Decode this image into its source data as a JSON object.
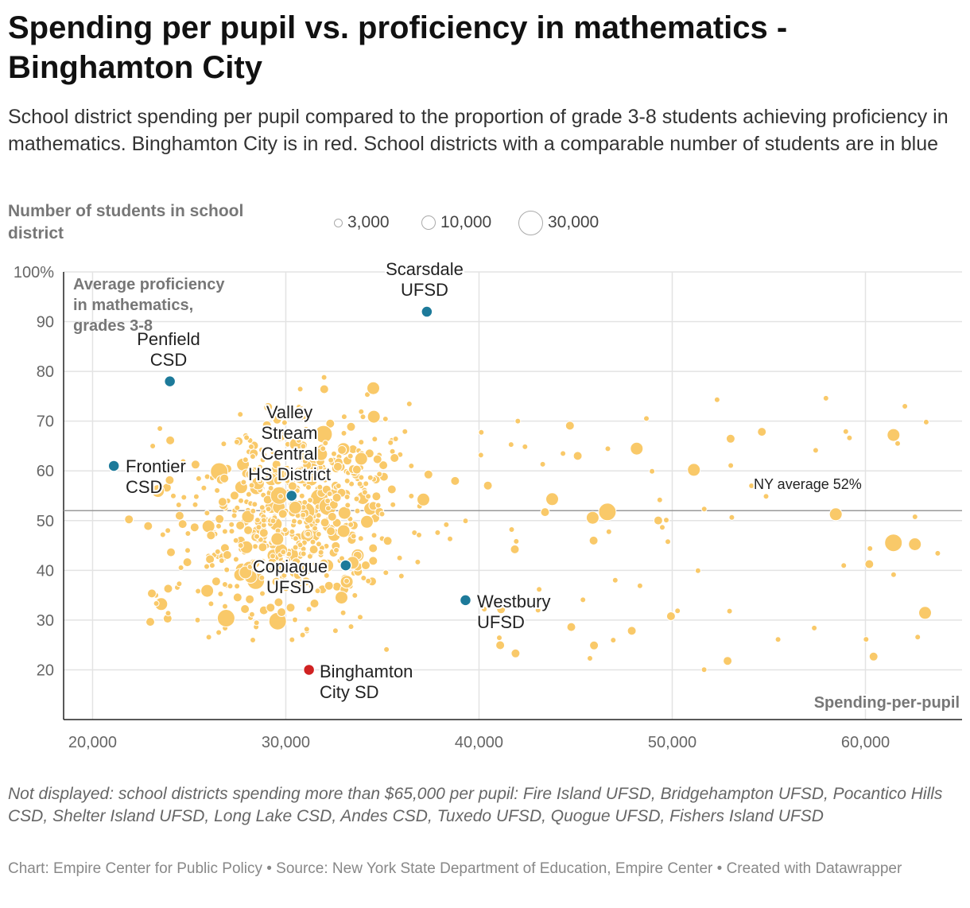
{
  "header": {
    "title": "Spending per pupil vs. proficiency in mathematics - Binghamton City",
    "subtitle": "School district spending per pupil compared to the proportion of grade 3-8 students achieving proficiency in mathematics. Binghamton City is in red. School districts with a comparable number of students are in blue"
  },
  "legend": {
    "title": "Number of students in school district",
    "items": [
      {
        "label": "3,000",
        "students": 3000
      },
      {
        "label": "10,000",
        "students": 10000
      },
      {
        "label": "30,000",
        "students": 30000
      }
    ]
  },
  "colors": {
    "other": "#f9c969",
    "comparable": "#1d7a9a",
    "highlight": "#d02222",
    "grid": "#e3e3e3",
    "reference": "#999999"
  },
  "chart_data": {
    "type": "scatter",
    "title": "Spending per pupil vs. proficiency in mathematics - Binghamton City",
    "xlabel": "Spending-per-pupil",
    "ylabel": "Average proficiency in mathematics, grades 3-8",
    "xlim": [
      18500,
      65000
    ],
    "ylim": [
      10,
      100
    ],
    "xticks": [
      20000,
      30000,
      40000,
      50000,
      60000
    ],
    "xtick_labels": [
      "20,000",
      "30,000",
      "40,000",
      "50,000",
      "60,000"
    ],
    "yticks": [
      20,
      30,
      40,
      50,
      60,
      70,
      80,
      90,
      100
    ],
    "ytick_labels": [
      "20",
      "30",
      "40",
      "50",
      "60",
      "70",
      "80",
      "90",
      "100%"
    ],
    "reference_line": {
      "y": 52,
      "label": "NY average 52%"
    },
    "highlighted": [
      {
        "name": "Binghamton City SD",
        "x": 31200,
        "y": 20,
        "group": "highlight"
      },
      {
        "name": "Scarsdale UFSD",
        "x": 37300,
        "y": 92,
        "group": "comparable"
      },
      {
        "name": "Penfield CSD",
        "x": 24000,
        "y": 78,
        "group": "comparable"
      },
      {
        "name": "Valley Stream Central HS District",
        "x": 30300,
        "y": 55,
        "group": "comparable"
      },
      {
        "name": "Frontier CSD",
        "x": 21100,
        "y": 61,
        "group": "comparable"
      },
      {
        "name": "Copiague UFSD",
        "x": 33100,
        "y": 41,
        "group": "comparable"
      },
      {
        "name": "Westbury UFSD",
        "x": 39300,
        "y": 34,
        "group": "comparable"
      }
    ],
    "district_count_estimate": 680,
    "random_seed": 7
  },
  "annotations": {
    "binghamton": [
      "Binghamton",
      "City SD"
    ],
    "scarsdale": [
      "Scarsdale",
      "UFSD"
    ],
    "penfield": [
      "Penfield",
      "CSD"
    ],
    "valley": [
      "Valley",
      "Stream",
      "Central",
      "HS District"
    ],
    "frontier": [
      "Frontier",
      "CSD"
    ],
    "copiague": [
      "Copiague",
      "UFSD"
    ],
    "westbury": [
      "Westbury",
      "UFSD"
    ],
    "yaxis_title": [
      "Average proficiency",
      "in mathematics,",
      "grades 3-8"
    ],
    "xaxis_title": "Spending-per-pupil"
  },
  "footer": {
    "note": "Not displayed: school districts spending more than $65,000 per pupil: Fire Island UFSD, Bridgehampton UFSD, Pocantico Hills CSD, Shelter Island UFSD, Long Lake CSD, Andes CSD, Tuxedo UFSD, Quogue UFSD, Fishers Island UFSD",
    "credit_chart": "Chart: Empire Center for Public Policy",
    "credit_source": "Source: New York State Department of Education, Empire Center",
    "credit_tool": "Created with Datawrapper"
  }
}
